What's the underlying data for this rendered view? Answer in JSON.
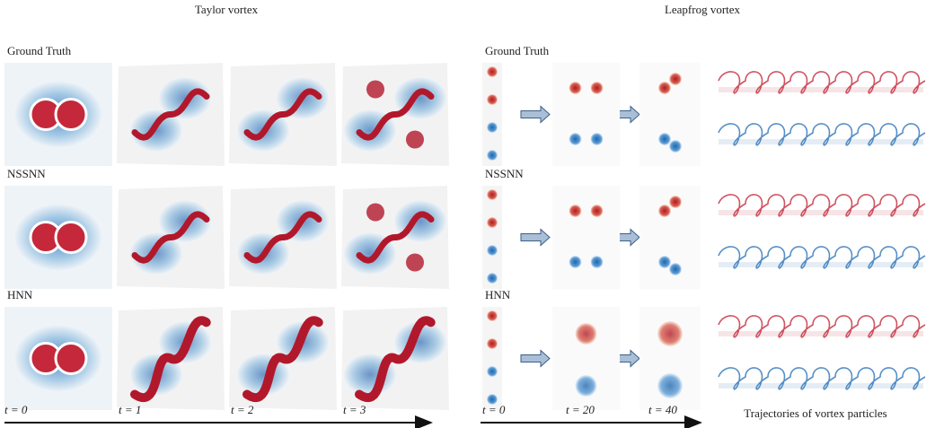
{
  "taylor": {
    "title": "Taylor vortex",
    "rows": [
      "Ground Truth",
      "NSSNN",
      "HNN"
    ],
    "times": [
      "t = 0",
      "t = 1",
      "t = 2",
      "t = 3"
    ]
  },
  "leapfrog": {
    "title": "Leapfrog vortex",
    "rows": [
      "Ground Truth",
      "NSSNN",
      "HNN"
    ],
    "times": [
      "t = 0",
      "t = 20",
      "t = 40"
    ],
    "caption": "Trajectories of vortex particles"
  }
}
